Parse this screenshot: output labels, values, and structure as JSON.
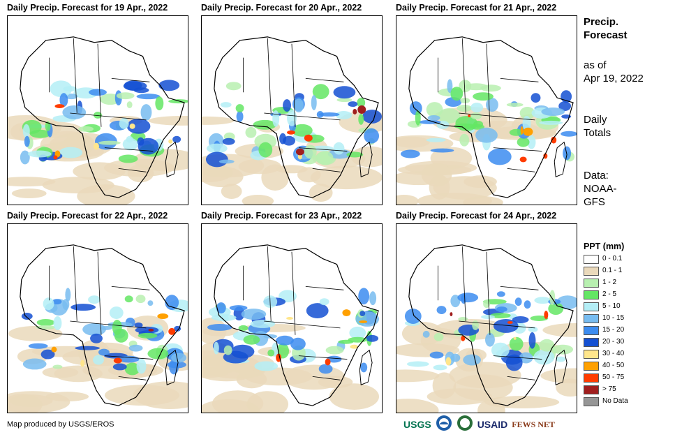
{
  "panels": [
    {
      "title": "Daily Precip. Forecast for 19 Apr., 2022"
    },
    {
      "title": "Daily Precip. Forecast for 20 Apr., 2022"
    },
    {
      "title": "Daily Precip. Forecast for 21 Apr., 2022"
    },
    {
      "title": "Daily Precip. Forecast for 22 Apr., 2022"
    },
    {
      "title": "Daily Precip. Forecast for 23 Apr., 2022"
    },
    {
      "title": "Daily Precip. Forecast for 24 Apr., 2022"
    }
  ],
  "side": {
    "title_line1": "Precip.",
    "title_line2": "Forecast",
    "asof_line1": "as of",
    "asof_line2": "Apr 19, 2022",
    "totals_line1": "Daily",
    "totals_line2": "Totals",
    "data_line1": "Data:",
    "data_line2": "NOAA-",
    "data_line3": "GFS"
  },
  "legend": {
    "title": "PPT (mm)",
    "items": [
      {
        "label": "0 - 0.1",
        "color": "#ffffff"
      },
      {
        "label": "0.1 - 1",
        "color": "#ead9bb"
      },
      {
        "label": "1 - 2",
        "color": "#b8f0b0"
      },
      {
        "label": "2 - 5",
        "color": "#64e664"
      },
      {
        "label": "5 - 10",
        "color": "#b4eef6"
      },
      {
        "label": "10 - 15",
        "color": "#78bcf0"
      },
      {
        "label": "15 - 20",
        "color": "#3c8cf0"
      },
      {
        "label": "20 - 30",
        "color": "#1450d2"
      },
      {
        "label": "30 - 40",
        "color": "#ffe68c"
      },
      {
        "label": "40 - 50",
        "color": "#ffa000"
      },
      {
        "label": "50 - 75",
        "color": "#ff3c00"
      },
      {
        "label": "> 75",
        "color": "#a01e1e"
      },
      {
        "label": "No Data",
        "color": "#969696"
      }
    ]
  },
  "footer": {
    "credit": "Map produced by USGS/EROS",
    "logos": [
      "USGS",
      "NOAA",
      "USDA",
      "USAID",
      "FEWS NET"
    ]
  }
}
